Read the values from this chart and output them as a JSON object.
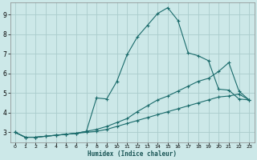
{
  "xlabel": "Humidex (Indice chaleur)",
  "background_color": "#cce8e8",
  "grid_color": "#aacccc",
  "line_color": "#1a6b6b",
  "xlim": [
    -0.5,
    23.5
  ],
  "ylim": [
    2.5,
    9.6
  ],
  "x_ticks": [
    0,
    1,
    2,
    3,
    4,
    5,
    6,
    7,
    8,
    9,
    10,
    11,
    12,
    13,
    14,
    15,
    16,
    17,
    18,
    19,
    20,
    21,
    22,
    23
  ],
  "y_ticks": [
    3,
    4,
    5,
    6,
    7,
    8,
    9
  ],
  "series1_x": [
    0,
    1,
    2,
    3,
    4,
    5,
    6,
    7,
    8,
    9,
    10,
    11,
    12,
    13,
    14,
    15,
    16,
    17,
    18,
    19,
    20,
    21,
    22,
    23
  ],
  "series1_y": [
    3.0,
    2.75,
    2.75,
    2.8,
    2.85,
    2.9,
    2.95,
    3.05,
    4.75,
    4.7,
    5.6,
    6.95,
    7.85,
    8.45,
    9.05,
    9.35,
    8.7,
    7.05,
    6.9,
    6.65,
    5.2,
    5.15,
    4.7,
    4.65
  ],
  "series2_x": [
    0,
    1,
    2,
    3,
    4,
    5,
    6,
    7,
    8,
    9,
    10,
    11,
    12,
    13,
    14,
    15,
    16,
    17,
    18,
    19,
    20,
    21,
    22,
    23
  ],
  "series2_y": [
    3.0,
    2.75,
    2.75,
    2.8,
    2.85,
    2.9,
    2.95,
    3.05,
    3.15,
    3.3,
    3.5,
    3.7,
    4.05,
    4.35,
    4.65,
    4.85,
    5.1,
    5.35,
    5.6,
    5.75,
    6.1,
    6.55,
    5.1,
    4.65
  ],
  "series3_x": [
    0,
    1,
    2,
    3,
    4,
    5,
    6,
    7,
    8,
    9,
    10,
    11,
    12,
    13,
    14,
    15,
    16,
    17,
    18,
    19,
    20,
    21,
    22,
    23
  ],
  "series3_y": [
    3.0,
    2.75,
    2.75,
    2.8,
    2.85,
    2.9,
    2.95,
    3.0,
    3.05,
    3.15,
    3.3,
    3.45,
    3.6,
    3.75,
    3.9,
    4.05,
    4.2,
    4.35,
    4.5,
    4.65,
    4.8,
    4.85,
    4.95,
    4.65
  ]
}
